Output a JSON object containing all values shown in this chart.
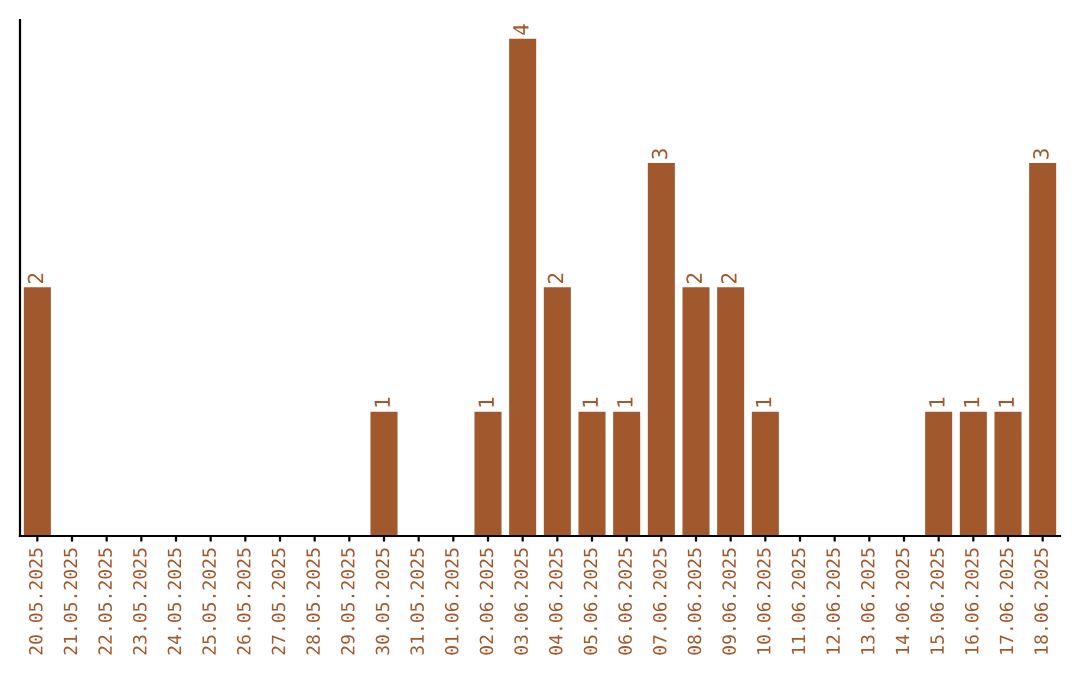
{
  "chart_data": {
    "type": "bar",
    "categories": [
      "20.05.2025",
      "21.05.2025",
      "22.05.2025",
      "23.05.2025",
      "24.05.2025",
      "25.05.2025",
      "26.05.2025",
      "27.05.2025",
      "28.05.2025",
      "29.05.2025",
      "30.05.2025",
      "31.05.2025",
      "01.06.2025",
      "02.06.2025",
      "03.06.2025",
      "04.06.2025",
      "05.06.2025",
      "06.06.2025",
      "07.06.2025",
      "08.06.2025",
      "09.06.2025",
      "10.06.2025",
      "11.06.2025",
      "12.06.2025",
      "13.06.2025",
      "14.06.2025",
      "15.06.2025",
      "16.06.2025",
      "17.06.2025",
      "18.06.2025"
    ],
    "values": [
      2,
      0,
      0,
      0,
      0,
      0,
      0,
      0,
      0,
      0,
      1,
      0,
      0,
      1,
      4,
      2,
      1,
      1,
      3,
      2,
      2,
      1,
      0,
      0,
      0,
      0,
      1,
      1,
      1,
      3
    ],
    "value_labels": [
      "2",
      null,
      null,
      null,
      null,
      null,
      null,
      null,
      null,
      null,
      "1",
      null,
      null,
      "1",
      "4",
      "2",
      "1",
      "1",
      "3",
      "2",
      "2",
      "1",
      null,
      null,
      null,
      null,
      "1",
      "1",
      "1",
      "3"
    ],
    "color": "#a0582c",
    "ylim": [
      0,
      4.15
    ],
    "tick_labels": "x",
    "grid": false,
    "legend": false
  }
}
